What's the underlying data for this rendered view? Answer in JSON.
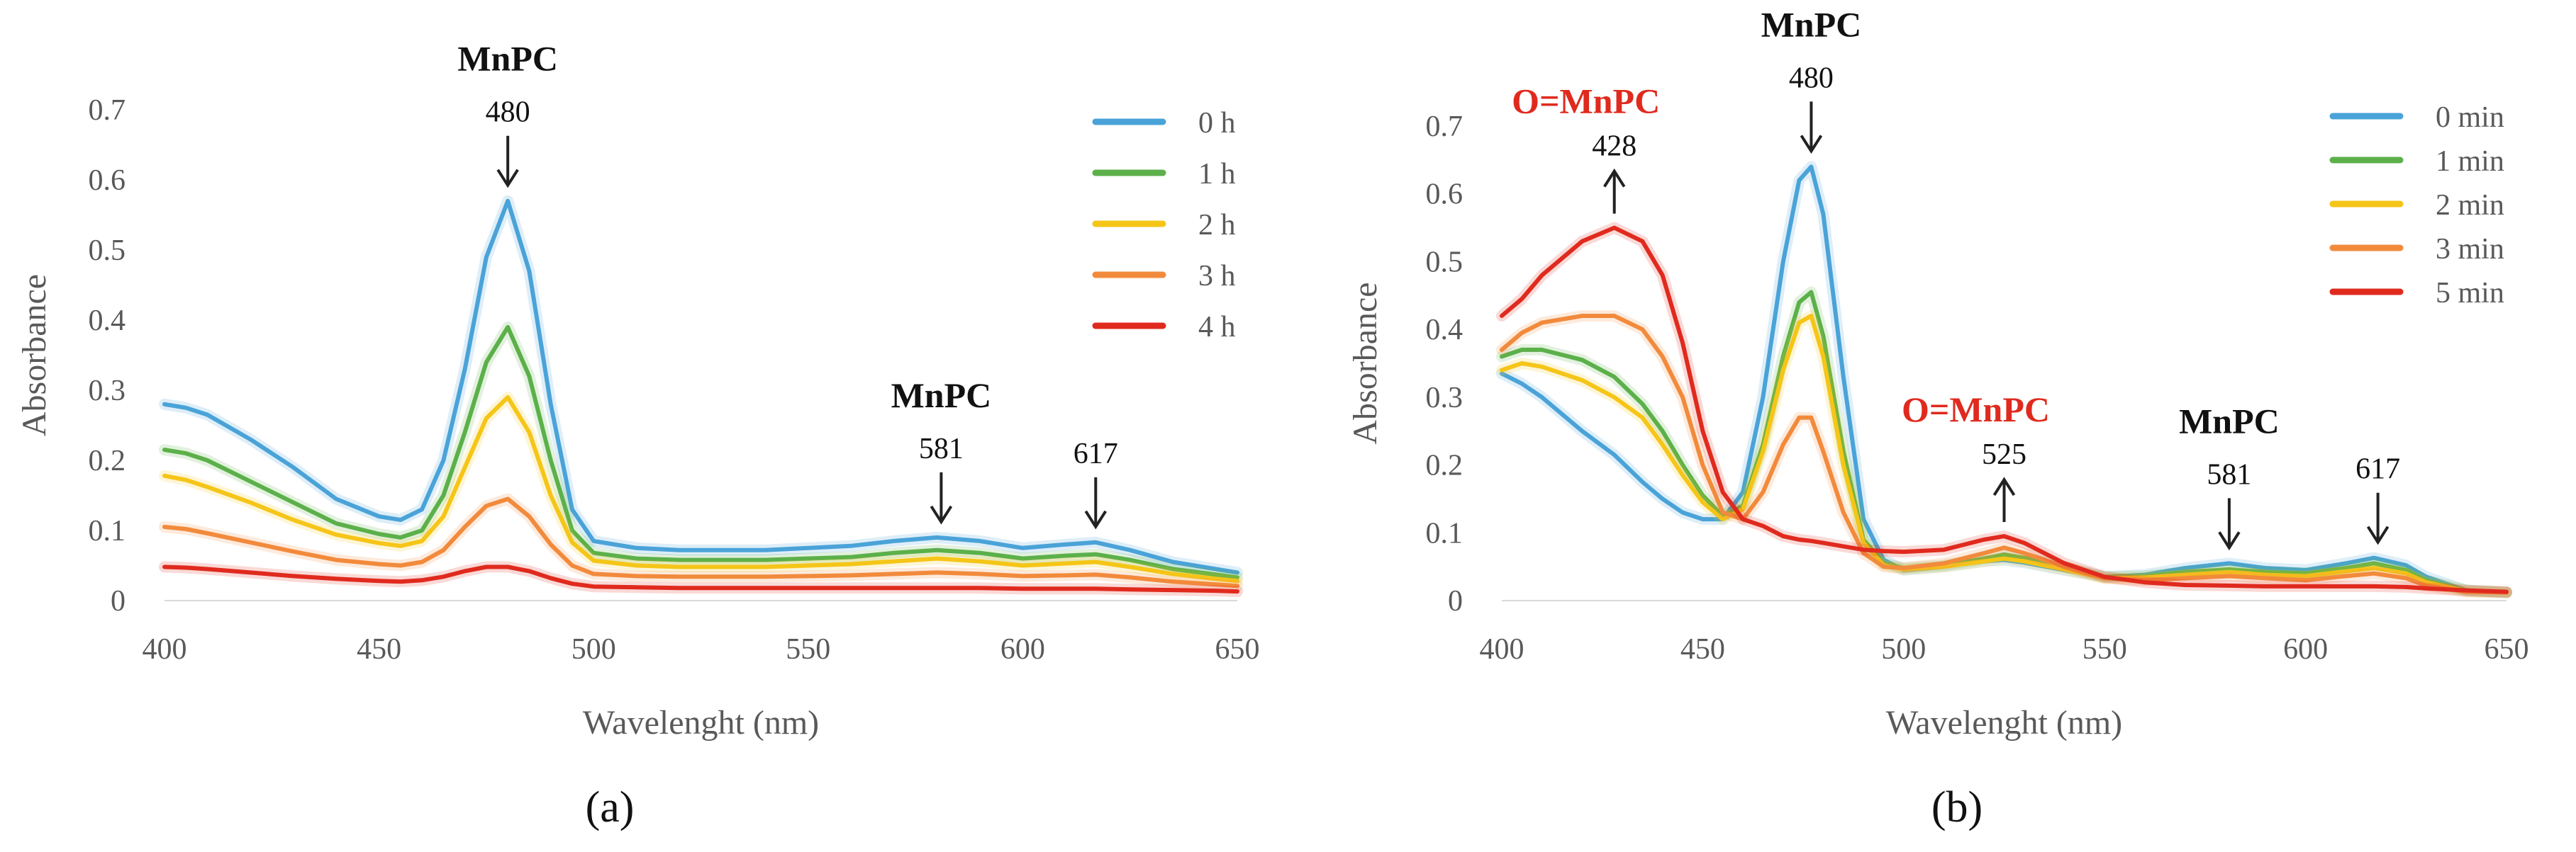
{
  "chart_data": [
    {
      "type": "line",
      "panel_label": "(a)",
      "xlabel": "Wavelenght (nm)",
      "ylabel": "Absorbance",
      "xlim": [
        400,
        650
      ],
      "ylim": [
        0,
        0.7
      ],
      "xticks": [
        "400",
        "450",
        "500",
        "550",
        "600",
        "650"
      ],
      "yticks": [
        "0",
        "0.1",
        "0.2",
        "0.3",
        "0.4",
        "0.5",
        "0.6",
        "0.7"
      ],
      "grid": false,
      "legend_position": "top-right",
      "x": [
        400,
        405,
        410,
        420,
        430,
        440,
        450,
        455,
        460,
        465,
        470,
        475,
        480,
        485,
        490,
        495,
        500,
        510,
        520,
        530,
        540,
        550,
        560,
        570,
        580,
        590,
        600,
        610,
        617,
        625,
        635,
        645,
        650
      ],
      "series": [
        {
          "name": "0 h",
          "color": "#4aa3d8",
          "values": [
            0.28,
            0.275,
            0.265,
            0.23,
            0.19,
            0.145,
            0.12,
            0.115,
            0.13,
            0.2,
            0.33,
            0.49,
            0.57,
            0.47,
            0.28,
            0.13,
            0.085,
            0.075,
            0.072,
            0.072,
            0.072,
            0.075,
            0.078,
            0.085,
            0.09,
            0.085,
            0.075,
            0.08,
            0.083,
            0.072,
            0.055,
            0.045,
            0.04
          ]
        },
        {
          "name": "1 h",
          "color": "#5cb04a",
          "values": [
            0.215,
            0.21,
            0.2,
            0.17,
            0.14,
            0.11,
            0.095,
            0.09,
            0.1,
            0.15,
            0.24,
            0.34,
            0.39,
            0.32,
            0.2,
            0.1,
            0.068,
            0.06,
            0.058,
            0.058,
            0.058,
            0.06,
            0.062,
            0.068,
            0.072,
            0.068,
            0.06,
            0.064,
            0.066,
            0.058,
            0.045,
            0.037,
            0.033
          ]
        },
        {
          "name": "2 h",
          "color": "#f5c518",
          "values": [
            0.178,
            0.172,
            0.162,
            0.14,
            0.115,
            0.094,
            0.082,
            0.078,
            0.085,
            0.12,
            0.19,
            0.26,
            0.29,
            0.24,
            0.15,
            0.083,
            0.057,
            0.05,
            0.048,
            0.048,
            0.048,
            0.05,
            0.052,
            0.056,
            0.06,
            0.056,
            0.05,
            0.053,
            0.055,
            0.048,
            0.038,
            0.031,
            0.028
          ]
        },
        {
          "name": "3 h",
          "color": "#f28a3c",
          "values": [
            0.105,
            0.102,
            0.096,
            0.083,
            0.07,
            0.058,
            0.052,
            0.05,
            0.055,
            0.072,
            0.105,
            0.135,
            0.145,
            0.12,
            0.08,
            0.05,
            0.038,
            0.035,
            0.034,
            0.034,
            0.034,
            0.035,
            0.036,
            0.038,
            0.04,
            0.038,
            0.035,
            0.036,
            0.037,
            0.033,
            0.027,
            0.023,
            0.021
          ]
        },
        {
          "name": "4 h",
          "color": "#e02a1e",
          "values": [
            0.048,
            0.047,
            0.045,
            0.04,
            0.035,
            0.031,
            0.028,
            0.027,
            0.029,
            0.034,
            0.042,
            0.048,
            0.048,
            0.042,
            0.032,
            0.024,
            0.02,
            0.019,
            0.018,
            0.018,
            0.018,
            0.018,
            0.018,
            0.018,
            0.018,
            0.018,
            0.017,
            0.017,
            0.017,
            0.016,
            0.015,
            0.014,
            0.013
          ]
        }
      ],
      "annotations": [
        {
          "title": "MnPC",
          "value": "480",
          "x": 480,
          "y": 0.57,
          "direction": "down",
          "color": "#111111"
        },
        {
          "title": "MnPC",
          "value": "581",
          "x": 581,
          "y": 0.09,
          "direction": "down",
          "color": "#111111"
        },
        {
          "title": "",
          "value": "617",
          "x": 617,
          "y": 0.083,
          "direction": "down",
          "color": "#111111"
        }
      ]
    },
    {
      "type": "line",
      "panel_label": "(b)",
      "xlabel": "Wavelenght (nm)",
      "ylabel": "Absorbance",
      "xlim": [
        400,
        650
      ],
      "ylim": [
        0,
        0.7
      ],
      "xticks": [
        "400",
        "450",
        "500",
        "550",
        "600",
        "650"
      ],
      "yticks": [
        "0",
        "0.1",
        "0.2",
        "0.3",
        "0.4",
        "0.5",
        "0.6",
        "0.7"
      ],
      "grid": false,
      "legend_position": "top-right",
      "x": [
        400,
        405,
        410,
        420,
        428,
        435,
        440,
        445,
        450,
        455,
        460,
        465,
        470,
        474,
        477,
        480,
        485,
        490,
        495,
        500,
        510,
        520,
        525,
        530,
        540,
        550,
        560,
        570,
        581,
        590,
        600,
        610,
        617,
        625,
        630,
        640,
        650
      ],
      "series": [
        {
          "name": "0 min",
          "color": "#4aa3d8",
          "values": [
            0.335,
            0.32,
            0.3,
            0.25,
            0.215,
            0.175,
            0.15,
            0.13,
            0.12,
            0.12,
            0.16,
            0.3,
            0.5,
            0.62,
            0.64,
            0.57,
            0.33,
            0.12,
            0.06,
            0.045,
            0.05,
            0.058,
            0.06,
            0.056,
            0.045,
            0.035,
            0.038,
            0.048,
            0.055,
            0.048,
            0.045,
            0.055,
            0.063,
            0.052,
            0.035,
            0.015,
            0.012
          ]
        },
        {
          "name": "1 min",
          "color": "#5cb04a",
          "values": [
            0.36,
            0.37,
            0.37,
            0.355,
            0.33,
            0.29,
            0.25,
            0.2,
            0.155,
            0.125,
            0.14,
            0.23,
            0.36,
            0.44,
            0.455,
            0.39,
            0.22,
            0.09,
            0.055,
            0.048,
            0.052,
            0.062,
            0.068,
            0.063,
            0.05,
            0.035,
            0.036,
            0.042,
            0.046,
            0.042,
            0.04,
            0.048,
            0.055,
            0.045,
            0.03,
            0.015,
            0.012
          ]
        },
        {
          "name": "2 min",
          "color": "#f5c518",
          "values": [
            0.34,
            0.35,
            0.345,
            0.325,
            0.3,
            0.27,
            0.23,
            0.185,
            0.145,
            0.12,
            0.135,
            0.22,
            0.34,
            0.41,
            0.42,
            0.36,
            0.2,
            0.085,
            0.052,
            0.046,
            0.05,
            0.058,
            0.062,
            0.058,
            0.046,
            0.033,
            0.034,
            0.038,
            0.042,
            0.038,
            0.036,
            0.043,
            0.048,
            0.04,
            0.027,
            0.014,
            0.012
          ]
        },
        {
          "name": "3 min",
          "color": "#f28a3c",
          "values": [
            0.37,
            0.395,
            0.41,
            0.42,
            0.42,
            0.4,
            0.36,
            0.3,
            0.2,
            0.13,
            0.12,
            0.16,
            0.23,
            0.27,
            0.27,
            0.22,
            0.13,
            0.07,
            0.05,
            0.048,
            0.055,
            0.07,
            0.078,
            0.07,
            0.05,
            0.033,
            0.03,
            0.033,
            0.036,
            0.033,
            0.03,
            0.036,
            0.04,
            0.033,
            0.022,
            0.013,
            0.012
          ]
        },
        {
          "name": "5 min",
          "color": "#e02a1e",
          "values": [
            0.42,
            0.445,
            0.48,
            0.53,
            0.55,
            0.53,
            0.48,
            0.38,
            0.25,
            0.16,
            0.12,
            0.11,
            0.095,
            0.09,
            0.088,
            0.085,
            0.08,
            0.075,
            0.073,
            0.072,
            0.075,
            0.09,
            0.095,
            0.085,
            0.055,
            0.035,
            0.027,
            0.023,
            0.022,
            0.021,
            0.021,
            0.021,
            0.021,
            0.02,
            0.018,
            0.015,
            0.013
          ]
        }
      ],
      "annotations": [
        {
          "title": "O=MnPC",
          "value": "428",
          "x": 428,
          "y": 0.55,
          "direction": "up",
          "color": "#e02a1e"
        },
        {
          "title": "MnPC",
          "value": "480",
          "x": 477,
          "y": 0.64,
          "direction": "down",
          "color": "#111111"
        },
        {
          "title": "O=MnPC",
          "value": "525",
          "x": 525,
          "y": 0.095,
          "direction": "up",
          "color": "#e02a1e"
        },
        {
          "title": "MnPC",
          "value": "581",
          "x": 581,
          "y": 0.055,
          "direction": "down",
          "color": "#111111"
        },
        {
          "title": "",
          "value": "617",
          "x": 618,
          "y": 0.063,
          "direction": "down",
          "color": "#111111"
        }
      ]
    }
  ]
}
